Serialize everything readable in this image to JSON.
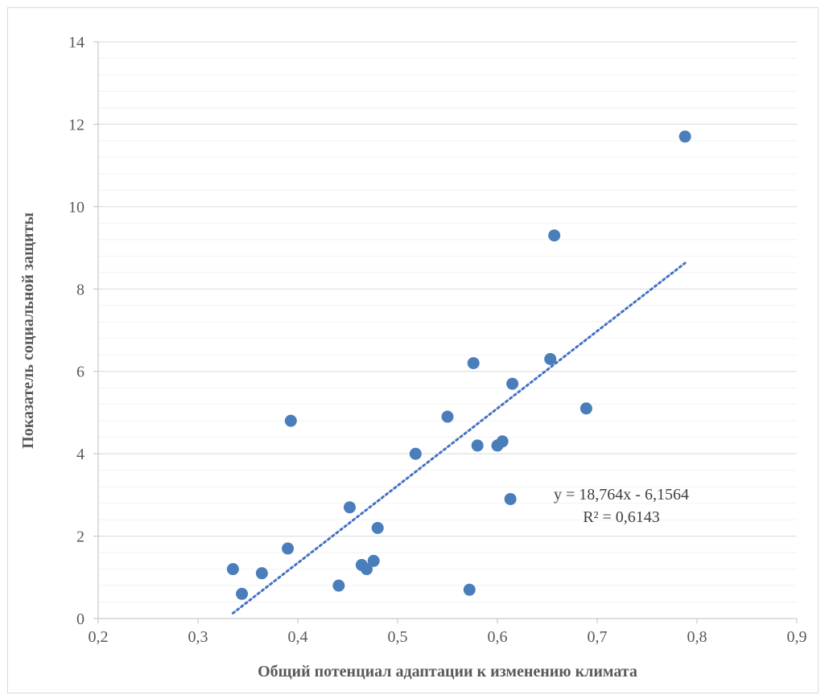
{
  "chart_data": {
    "type": "scatter",
    "xlabel": "Общий потенциал адаптации к изменению климата",
    "ylabel": "Показатель социальной защиты",
    "xlim": [
      0.2,
      0.9
    ],
    "ylim": [
      0,
      14
    ],
    "x_ticks": [
      "0,2",
      "0,3",
      "0,4",
      "0,5",
      "0,6",
      "0,7",
      "0,8",
      "0,9"
    ],
    "y_ticks": [
      "0",
      "2",
      "4",
      "6",
      "8",
      "10",
      "12",
      "14"
    ],
    "x_tick_values": [
      0.2,
      0.3,
      0.4,
      0.5,
      0.6,
      0.7,
      0.8,
      0.9
    ],
    "y_tick_values": [
      0,
      2,
      4,
      6,
      8,
      10,
      12,
      14
    ],
    "grid": {
      "major_y": true,
      "minor_y_step": 0.4
    },
    "marker_color": "#4a7ebb",
    "trendline_color": "#4472c4",
    "points": [
      {
        "x": 0.335,
        "y": 1.2
      },
      {
        "x": 0.344,
        "y": 0.6
      },
      {
        "x": 0.364,
        "y": 1.1
      },
      {
        "x": 0.39,
        "y": 1.7
      },
      {
        "x": 0.393,
        "y": 4.8
      },
      {
        "x": 0.441,
        "y": 0.8
      },
      {
        "x": 0.452,
        "y": 2.7
      },
      {
        "x": 0.464,
        "y": 1.3
      },
      {
        "x": 0.469,
        "y": 1.2
      },
      {
        "x": 0.476,
        "y": 1.4
      },
      {
        "x": 0.48,
        "y": 2.2
      },
      {
        "x": 0.518,
        "y": 4.0
      },
      {
        "x": 0.55,
        "y": 4.9
      },
      {
        "x": 0.572,
        "y": 0.7
      },
      {
        "x": 0.576,
        "y": 6.2
      },
      {
        "x": 0.58,
        "y": 4.2
      },
      {
        "x": 0.6,
        "y": 4.2
      },
      {
        "x": 0.605,
        "y": 4.3
      },
      {
        "x": 0.613,
        "y": 2.9
      },
      {
        "x": 0.615,
        "y": 5.7
      },
      {
        "x": 0.653,
        "y": 6.3
      },
      {
        "x": 0.657,
        "y": 9.3
      },
      {
        "x": 0.689,
        "y": 5.1
      },
      {
        "x": 0.788,
        "y": 11.7
      }
    ],
    "trendline": {
      "slope": 18.764,
      "intercept": -6.1564,
      "x_range": [
        0.335,
        0.788
      ],
      "equation": "y = 18,764x - 6,1564",
      "r_squared": "R² = 0,6143"
    }
  }
}
